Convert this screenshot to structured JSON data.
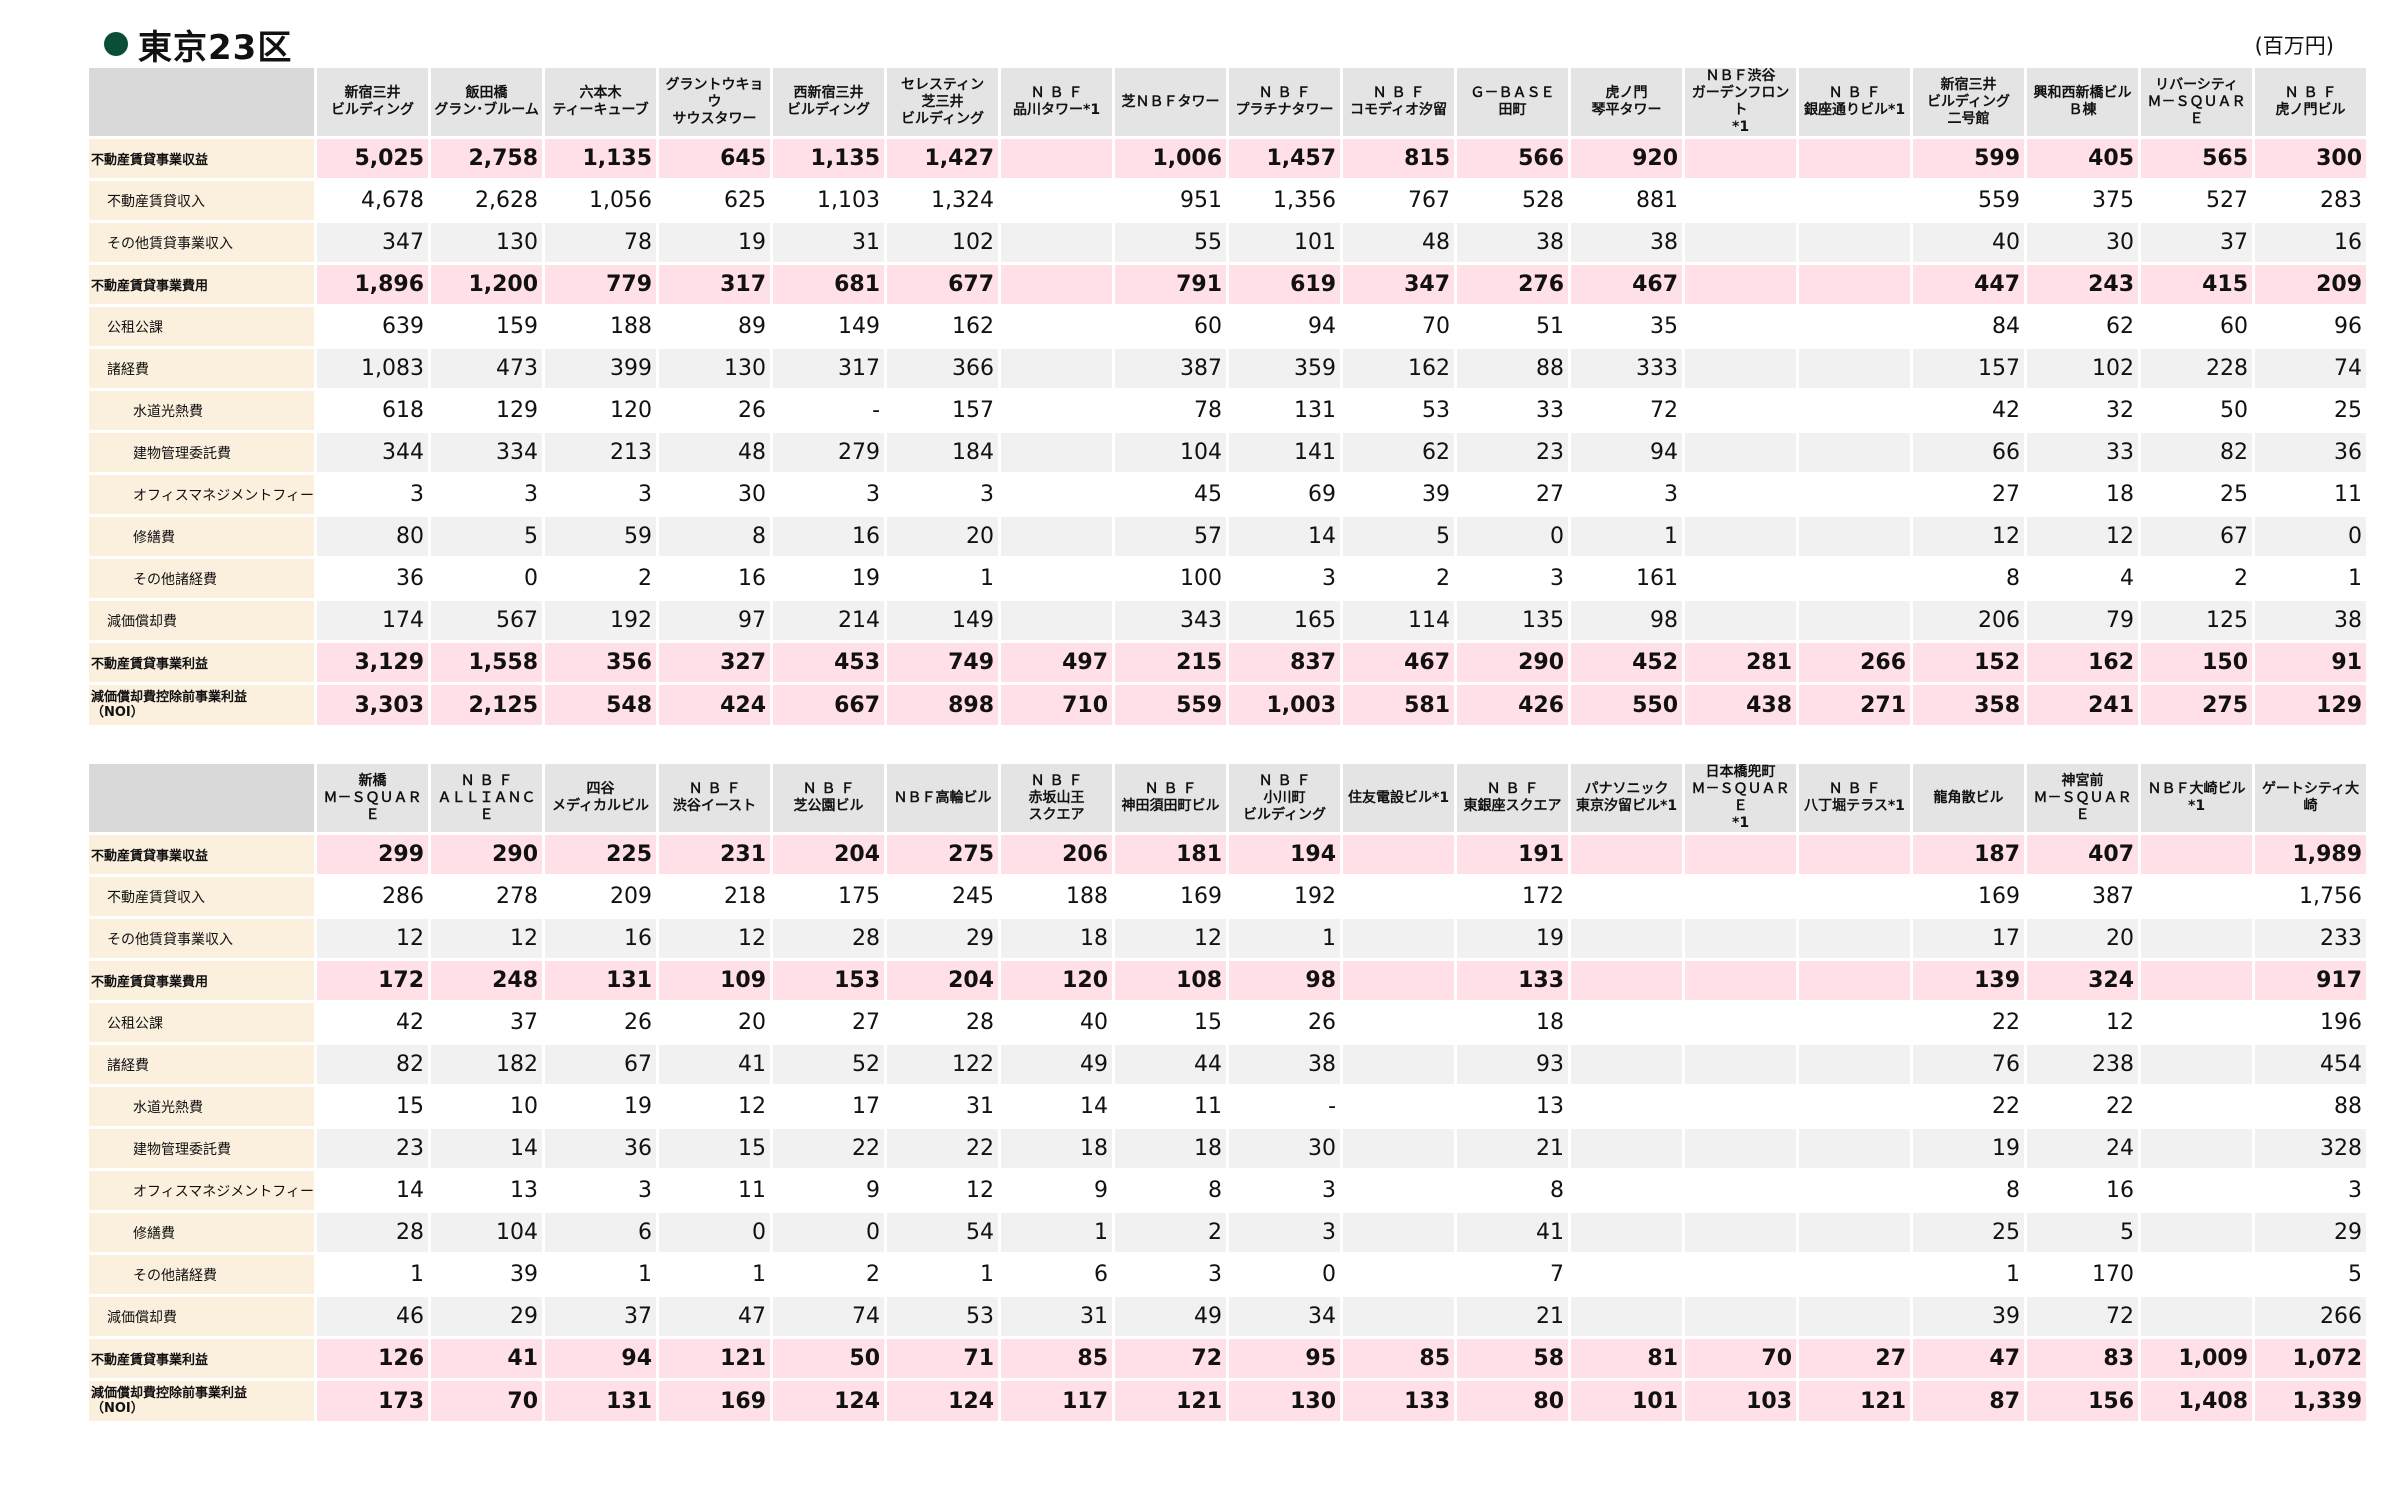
{
  "title": "東京23区",
  "unit": "(百万円)",
  "row_labels": [
    "不動産賃貸事業収益",
    "不動産賃貸収入",
    "その他賃貸事業収入",
    "不動産賃貸事業費用",
    "公租公課",
    "諸経費",
    "水道光熱費",
    "建物管理委託費",
    "オフィスマネジメントフィー",
    "修繕費",
    "その他諸経費",
    "減価償却費",
    "不動産賃貸事業利益",
    "減価償却費控除前事業利益\n（NOI）"
  ],
  "tables": [
    {
      "columns": [
        "新宿三井\nビルディング",
        "飯田橋\nグラン･ブルーム",
        "六本木\nティーキューブ",
        "グラントウキョウ\nサウスタワー",
        "西新宿三井\nビルディング",
        "セレスティン\n芝三井\nビルディング",
        "Ｎ Ｂ Ｆ\n品川タワー*1",
        "芝ＮＢＦタワー",
        "Ｎ Ｂ Ｆ\nプラチナタワー",
        "Ｎ Ｂ Ｆ\nコモディオ汐留",
        "Ｇ－ＢＡＳＥ\n田町",
        "虎ノ門\n琴平タワー",
        "ＮＢＦ渋谷\nガーデンフロント\n*1",
        "Ｎ Ｂ Ｆ\n銀座通りビル*1",
        "新宿三井\nビルディング\n二号館",
        "興和西新橋ビル\nＢ棟",
        "リバーシティ\nＭ－ＳＱＵＡＲＥ",
        "Ｎ Ｂ Ｆ\n虎ノ門ビル"
      ],
      "rows": [
        [
          "5,025",
          "2,758",
          "1,135",
          "645",
          "1,135",
          "1,427",
          "",
          "1,006",
          "1,457",
          "815",
          "566",
          "920",
          "",
          "",
          "599",
          "405",
          "565",
          "300"
        ],
        [
          "4,678",
          "2,628",
          "1,056",
          "625",
          "1,103",
          "1,324",
          "",
          "951",
          "1,356",
          "767",
          "528",
          "881",
          "",
          "",
          "559",
          "375",
          "527",
          "283"
        ],
        [
          "347",
          "130",
          "78",
          "19",
          "31",
          "102",
          "",
          "55",
          "101",
          "48",
          "38",
          "38",
          "",
          "",
          "40",
          "30",
          "37",
          "16"
        ],
        [
          "1,896",
          "1,200",
          "779",
          "317",
          "681",
          "677",
          "",
          "791",
          "619",
          "347",
          "276",
          "467",
          "",
          "",
          "447",
          "243",
          "415",
          "209"
        ],
        [
          "639",
          "159",
          "188",
          "89",
          "149",
          "162",
          "",
          "60",
          "94",
          "70",
          "51",
          "35",
          "",
          "",
          "84",
          "62",
          "60",
          "96"
        ],
        [
          "1,083",
          "473",
          "399",
          "130",
          "317",
          "366",
          "",
          "387",
          "359",
          "162",
          "88",
          "333",
          "",
          "",
          "157",
          "102",
          "228",
          "74"
        ],
        [
          "618",
          "129",
          "120",
          "26",
          "-",
          "157",
          "",
          "78",
          "131",
          "53",
          "33",
          "72",
          "",
          "",
          "42",
          "32",
          "50",
          "25"
        ],
        [
          "344",
          "334",
          "213",
          "48",
          "279",
          "184",
          "",
          "104",
          "141",
          "62",
          "23",
          "94",
          "",
          "",
          "66",
          "33",
          "82",
          "36"
        ],
        [
          "3",
          "3",
          "3",
          "30",
          "3",
          "3",
          "",
          "45",
          "69",
          "39",
          "27",
          "3",
          "",
          "",
          "27",
          "18",
          "25",
          "11"
        ],
        [
          "80",
          "5",
          "59",
          "8",
          "16",
          "20",
          "",
          "57",
          "14",
          "5",
          "0",
          "1",
          "",
          "",
          "12",
          "12",
          "67",
          "0"
        ],
        [
          "36",
          "0",
          "2",
          "16",
          "19",
          "1",
          "",
          "100",
          "3",
          "2",
          "3",
          "161",
          "",
          "",
          "8",
          "4",
          "2",
          "1"
        ],
        [
          "174",
          "567",
          "192",
          "97",
          "214",
          "149",
          "",
          "343",
          "165",
          "114",
          "135",
          "98",
          "",
          "",
          "206",
          "79",
          "125",
          "38"
        ],
        [
          "3,129",
          "1,558",
          "356",
          "327",
          "453",
          "749",
          "497",
          "215",
          "837",
          "467",
          "290",
          "452",
          "281",
          "266",
          "152",
          "162",
          "150",
          "91"
        ],
        [
          "3,303",
          "2,125",
          "548",
          "424",
          "667",
          "898",
          "710",
          "559",
          "1,003",
          "581",
          "426",
          "550",
          "438",
          "271",
          "358",
          "241",
          "275",
          "129"
        ]
      ]
    },
    {
      "columns": [
        "新橋\nＭ－ＳＱＵＡＲＥ",
        "Ｎ Ｂ Ｆ\nＡＬＬＩＡＮＣＥ",
        "四谷\nメディカルビル",
        "Ｎ Ｂ Ｆ\n渋谷イースト",
        "Ｎ Ｂ Ｆ\n芝公園ビル",
        "ＮＢＦ高輪ビル",
        "Ｎ Ｂ Ｆ\n赤坂山王\nスクエア",
        "Ｎ Ｂ Ｆ\n神田須田町ビル",
        "Ｎ Ｂ Ｆ\n小川町\nビルディング",
        "住友電設ビル*1",
        "Ｎ Ｂ Ｆ\n東銀座スクエア",
        "パナソニック\n東京汐留ビル*1",
        "日本橋兜町\nＭ－ＳＱＵＡＲＥ\n*1",
        "Ｎ Ｂ Ｆ\n八丁堀テラス*1",
        "龍角散ビル",
        "神宮前\nＭ－ＳＱＵＡＲＥ",
        "ＮＢＦ大崎ビル\n*1",
        "ゲートシティ大崎"
      ],
      "rows": [
        [
          "299",
          "290",
          "225",
          "231",
          "204",
          "275",
          "206",
          "181",
          "194",
          "",
          "191",
          "",
          "",
          "",
          "187",
          "407",
          "",
          "1,989"
        ],
        [
          "286",
          "278",
          "209",
          "218",
          "175",
          "245",
          "188",
          "169",
          "192",
          "",
          "172",
          "",
          "",
          "",
          "169",
          "387",
          "",
          "1,756"
        ],
        [
          "12",
          "12",
          "16",
          "12",
          "28",
          "29",
          "18",
          "12",
          "1",
          "",
          "19",
          "",
          "",
          "",
          "17",
          "20",
          "",
          "233"
        ],
        [
          "172",
          "248",
          "131",
          "109",
          "153",
          "204",
          "120",
          "108",
          "98",
          "",
          "133",
          "",
          "",
          "",
          "139",
          "324",
          "",
          "917"
        ],
        [
          "42",
          "37",
          "26",
          "20",
          "27",
          "28",
          "40",
          "15",
          "26",
          "",
          "18",
          "",
          "",
          "",
          "22",
          "12",
          "",
          "196"
        ],
        [
          "82",
          "182",
          "67",
          "41",
          "52",
          "122",
          "49",
          "44",
          "38",
          "",
          "93",
          "",
          "",
          "",
          "76",
          "238",
          "",
          "454"
        ],
        [
          "15",
          "10",
          "19",
          "12",
          "17",
          "31",
          "14",
          "11",
          "-",
          "",
          "13",
          "",
          "",
          "",
          "22",
          "22",
          "",
          "88"
        ],
        [
          "23",
          "14",
          "36",
          "15",
          "22",
          "22",
          "18",
          "18",
          "30",
          "",
          "21",
          "",
          "",
          "",
          "19",
          "24",
          "",
          "328"
        ],
        [
          "14",
          "13",
          "3",
          "11",
          "9",
          "12",
          "9",
          "8",
          "3",
          "",
          "8",
          "",
          "",
          "",
          "8",
          "16",
          "",
          "3"
        ],
        [
          "28",
          "104",
          "6",
          "0",
          "0",
          "54",
          "1",
          "2",
          "3",
          "",
          "41",
          "",
          "",
          "",
          "25",
          "5",
          "",
          "29"
        ],
        [
          "1",
          "39",
          "1",
          "1",
          "2",
          "1",
          "6",
          "3",
          "0",
          "",
          "7",
          "",
          "",
          "",
          "1",
          "170",
          "",
          "5"
        ],
        [
          "46",
          "29",
          "37",
          "47",
          "74",
          "53",
          "31",
          "49",
          "34",
          "",
          "21",
          "",
          "",
          "",
          "39",
          "72",
          "",
          "266"
        ],
        [
          "126",
          "41",
          "94",
          "121",
          "50",
          "71",
          "85",
          "72",
          "95",
          "85",
          "58",
          "81",
          "70",
          "27",
          "47",
          "83",
          "1,009",
          "1,072"
        ],
        [
          "173",
          "70",
          "131",
          "169",
          "124",
          "124",
          "117",
          "121",
          "130",
          "133",
          "80",
          "101",
          "103",
          "121",
          "87",
          "156",
          "1,408",
          "1,339"
        ]
      ]
    }
  ]
}
